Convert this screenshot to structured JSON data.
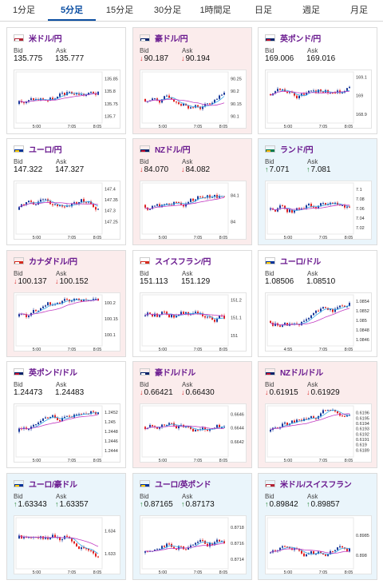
{
  "tabs": [
    {
      "label": "1分足",
      "active": false
    },
    {
      "label": "5分足",
      "active": true
    },
    {
      "label": "15分足",
      "active": false
    },
    {
      "label": "30分足",
      "active": false
    },
    {
      "label": "1時間足",
      "active": false
    },
    {
      "label": "日足",
      "active": false
    },
    {
      "label": "週足",
      "active": false
    },
    {
      "label": "月足",
      "active": false
    }
  ],
  "bid_label": "Bid",
  "ask_label": "Ask",
  "colors": {
    "up_candle": "#1a3a9a",
    "down_candle": "#e02020",
    "ma_fast": "#35a8e8",
    "ma_slow": "#c23cc2",
    "pair_text": "#6a1a8f",
    "active_tab": "#0b4ea2"
  },
  "cards": [
    {
      "pair": "米ドル/円",
      "flag": "flag-us-jp-icon",
      "trend": "none",
      "arrow": "",
      "bid": "135.775",
      "ask": "135.777",
      "x_ticks": [
        "5:00",
        "7:05",
        "8:05"
      ],
      "y_ticks": [
        "135.85",
        "135.8",
        "135.75",
        "135.7"
      ],
      "y_range": [
        135.68,
        135.87
      ],
      "seed": 3
    },
    {
      "pair": "豪ドル/円",
      "flag": "flag-au-jp-icon",
      "trend": "down",
      "arrow": "↓",
      "bid": "90.187",
      "ask": "90.194",
      "x_ticks": [
        "5:00",
        "7:05",
        "8:05"
      ],
      "y_ticks": [
        "90.25",
        "90.2",
        "90.15",
        "90.1"
      ],
      "y_range": [
        90.08,
        90.27
      ],
      "seed": 7
    },
    {
      "pair": "英ポンド/円",
      "flag": "flag-gb-jp-icon",
      "trend": "none",
      "arrow": "",
      "bid": "169.006",
      "ask": "169.016",
      "x_ticks": [
        "5:00",
        "7:05",
        "8:05"
      ],
      "y_ticks": [
        "169.1",
        "169",
        "168.9"
      ],
      "y_range": [
        168.86,
        169.12
      ],
      "seed": 11
    },
    {
      "pair": "ユーロ/円",
      "flag": "flag-eu-jp-icon",
      "trend": "none",
      "arrow": "",
      "bid": "147.322",
      "ask": "147.327",
      "x_ticks": [
        "5:00",
        "7:05",
        "8:05"
      ],
      "y_ticks": [
        "147.4",
        "147.35",
        "147.3",
        "147.25"
      ],
      "y_range": [
        147.2,
        147.42
      ],
      "seed": 13
    },
    {
      "pair": "NZドル/円",
      "flag": "flag-nz-jp-icon",
      "trend": "down",
      "arrow": "↓",
      "bid": "84.070",
      "ask": "84.082",
      "x_ticks": [
        "5:00",
        "7:05",
        "8:05"
      ],
      "y_ticks": [
        "84.1",
        "84"
      ],
      "y_range": [
        83.96,
        84.14
      ],
      "seed": 17
    },
    {
      "pair": "ランド/円",
      "flag": "flag-za-jp-icon",
      "trend": "up",
      "arrow": "↑",
      "bid": "7.071",
      "ask": "7.081",
      "x_ticks": [
        "5:00",
        "7:05",
        "8:05"
      ],
      "y_ticks": [
        "7.1",
        "7.08",
        "7.06",
        "7.04",
        "7.02"
      ],
      "y_range": [
        7.01,
        7.11
      ],
      "seed": 19
    },
    {
      "pair": "カナダドル/円",
      "flag": "flag-ca-jp-icon",
      "trend": "down",
      "arrow": "↓",
      "bid": "100.137",
      "ask": "100.152",
      "x_ticks": [
        "5:00",
        "7:05",
        "8:05"
      ],
      "y_ticks": [
        "100.2",
        "100.15",
        "100.1"
      ],
      "y_range": [
        100.07,
        100.22
      ],
      "seed": 23
    },
    {
      "pair": "スイスフラン/円",
      "flag": "flag-ch-jp-icon",
      "trend": "none",
      "arrow": "",
      "bid": "151.113",
      "ask": "151.129",
      "x_ticks": [
        "5:00",
        "7:05",
        "8:05"
      ],
      "y_ticks": [
        "151.2",
        "151.1",
        "151"
      ],
      "y_range": [
        150.95,
        151.22
      ],
      "seed": 29
    },
    {
      "pair": "ユーロ/ドル",
      "flag": "flag-eu-us-icon",
      "trend": "none",
      "arrow": "",
      "bid": "1.08506",
      "ask": "1.08510",
      "x_ticks": [
        "4:55",
        "7:05",
        "8:05"
      ],
      "y_ticks": [
        "1.0854",
        "1.0852",
        "1.085",
        "1.0848",
        "1.0846"
      ],
      "y_range": [
        1.0845,
        1.0855
      ],
      "seed": 31
    },
    {
      "pair": "英ポンド/ドル",
      "flag": "flag-gb-us-icon",
      "trend": "none",
      "arrow": "",
      "bid": "1.24473",
      "ask": "1.24483",
      "x_ticks": [
        "5:00",
        "7:05",
        "8:05"
      ],
      "y_ticks": [
        "1.2452",
        "1.245",
        "1.2448",
        "1.2446",
        "1.2444"
      ],
      "y_range": [
        1.2443,
        1.2453
      ],
      "seed": 37
    },
    {
      "pair": "豪ドル/ドル",
      "flag": "flag-au-us-icon",
      "trend": "down",
      "arrow": "↓",
      "bid": "0.66421",
      "ask": "0.66430",
      "x_ticks": [
        "5:00",
        "7:05",
        "8:05"
      ],
      "y_ticks": [
        "0.6646",
        "0.6644",
        "0.6642"
      ],
      "y_range": [
        0.664,
        0.6647
      ],
      "seed": 41
    },
    {
      "pair": "NZドル/ドル",
      "flag": "flag-nz-us-icon",
      "trend": "down",
      "arrow": "↓",
      "bid": "0.61915",
      "ask": "0.61929",
      "x_ticks": [
        "5:00",
        "7:05",
        "8:05"
      ],
      "y_ticks": [
        "0.6196",
        "0.6195",
        "0.6194",
        "0.6193",
        "0.6192",
        "0.6191",
        "0.619",
        "0.6189"
      ],
      "y_range": [
        0.6188,
        0.6197
      ],
      "seed": 43
    },
    {
      "pair": "ユーロ/豪ドル",
      "flag": "flag-eu-au-icon",
      "trend": "up",
      "arrow": "↑",
      "bid": "1.63343",
      "ask": "1.63357",
      "x_ticks": [
        "5:00",
        "7:05",
        "8:05"
      ],
      "y_ticks": [
        "1.634",
        "1.633"
      ],
      "y_range": [
        1.6324,
        1.6345
      ],
      "seed": 47
    },
    {
      "pair": "ユーロ/英ポンド",
      "flag": "flag-eu-gb-icon",
      "trend": "up",
      "arrow": "↑",
      "bid": "0.87165",
      "ask": "0.87173",
      "x_ticks": [
        "5:00",
        "7:05",
        "8:05"
      ],
      "y_ticks": [
        "0.8718",
        "0.8716",
        "0.8714"
      ],
      "y_range": [
        0.8713,
        0.8719
      ],
      "seed": 53
    },
    {
      "pair": "米ドル/スイスフラン",
      "flag": "flag-us-ch-icon",
      "trend": "up",
      "arrow": "↑",
      "bid": "0.89842",
      "ask": "0.89857",
      "x_ticks": [
        "5:00",
        "7:05",
        "8:05"
      ],
      "y_ticks": [
        "0.8985",
        "0.898"
      ],
      "y_range": [
        0.8977,
        0.8989
      ],
      "seed": 59
    }
  ]
}
